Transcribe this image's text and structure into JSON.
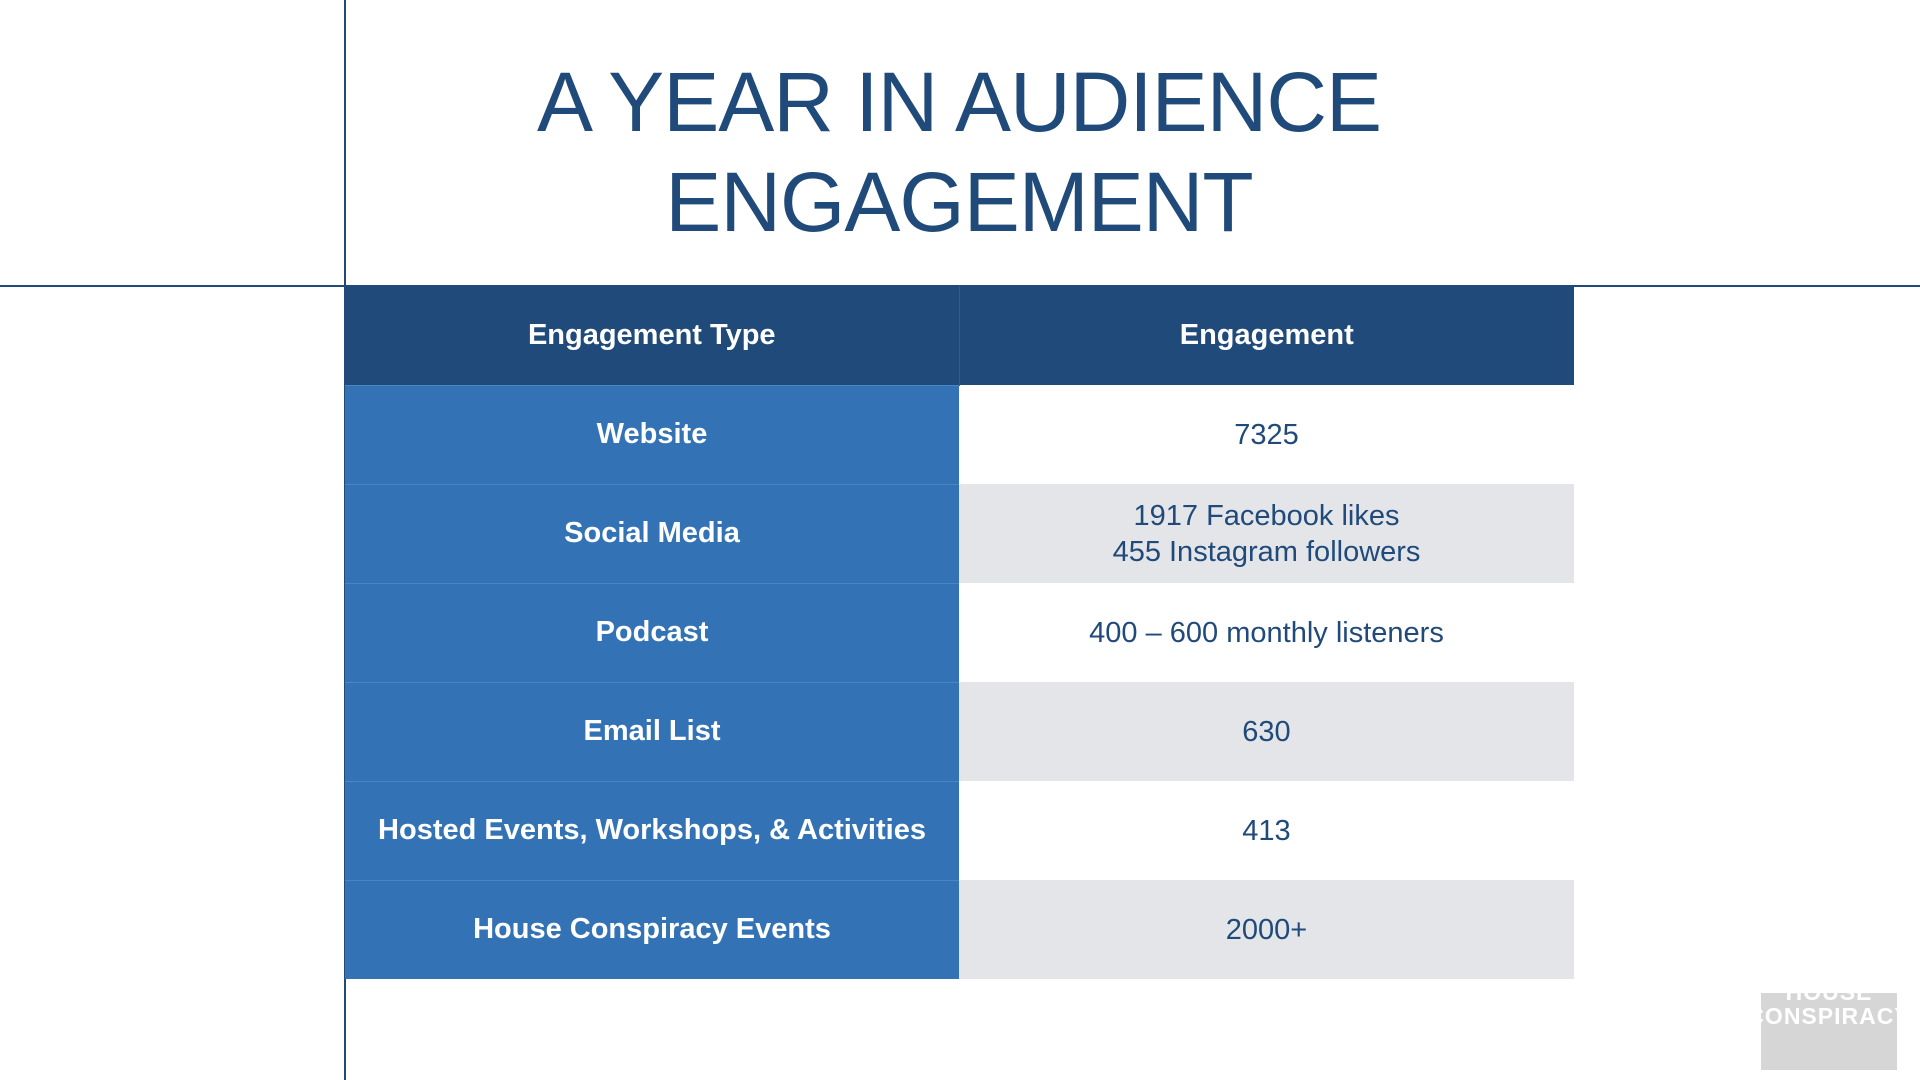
{
  "title": {
    "line1": "A YEAR IN AUDIENCE",
    "line2": "ENGAGEMENT"
  },
  "table": {
    "headers": [
      "Engagement Type",
      "Engagement"
    ],
    "rows": [
      {
        "type": "Website",
        "value": [
          "7325"
        ]
      },
      {
        "type": "Social Media",
        "value": [
          "1917 Facebook likes",
          "455 Instagram followers"
        ]
      },
      {
        "type": "Podcast",
        "value": [
          "400 – 600 monthly listeners"
        ]
      },
      {
        "type": "Email List",
        "value": [
          "630"
        ]
      },
      {
        "type": "Hosted Events, Workshops, & Activities",
        "value": [
          "413"
        ]
      },
      {
        "type": "House Conspiracy Events",
        "value": [
          "2000+"
        ]
      }
    ]
  },
  "logo": {
    "line1": "HOUSE",
    "line2": "CONSPIRACY"
  },
  "colors": {
    "primary_navy": "#1f4a7a",
    "row_blue": "#3373b5",
    "stripe_gray": "#e4e5e8",
    "logo_gray": "#d6d6d6"
  }
}
